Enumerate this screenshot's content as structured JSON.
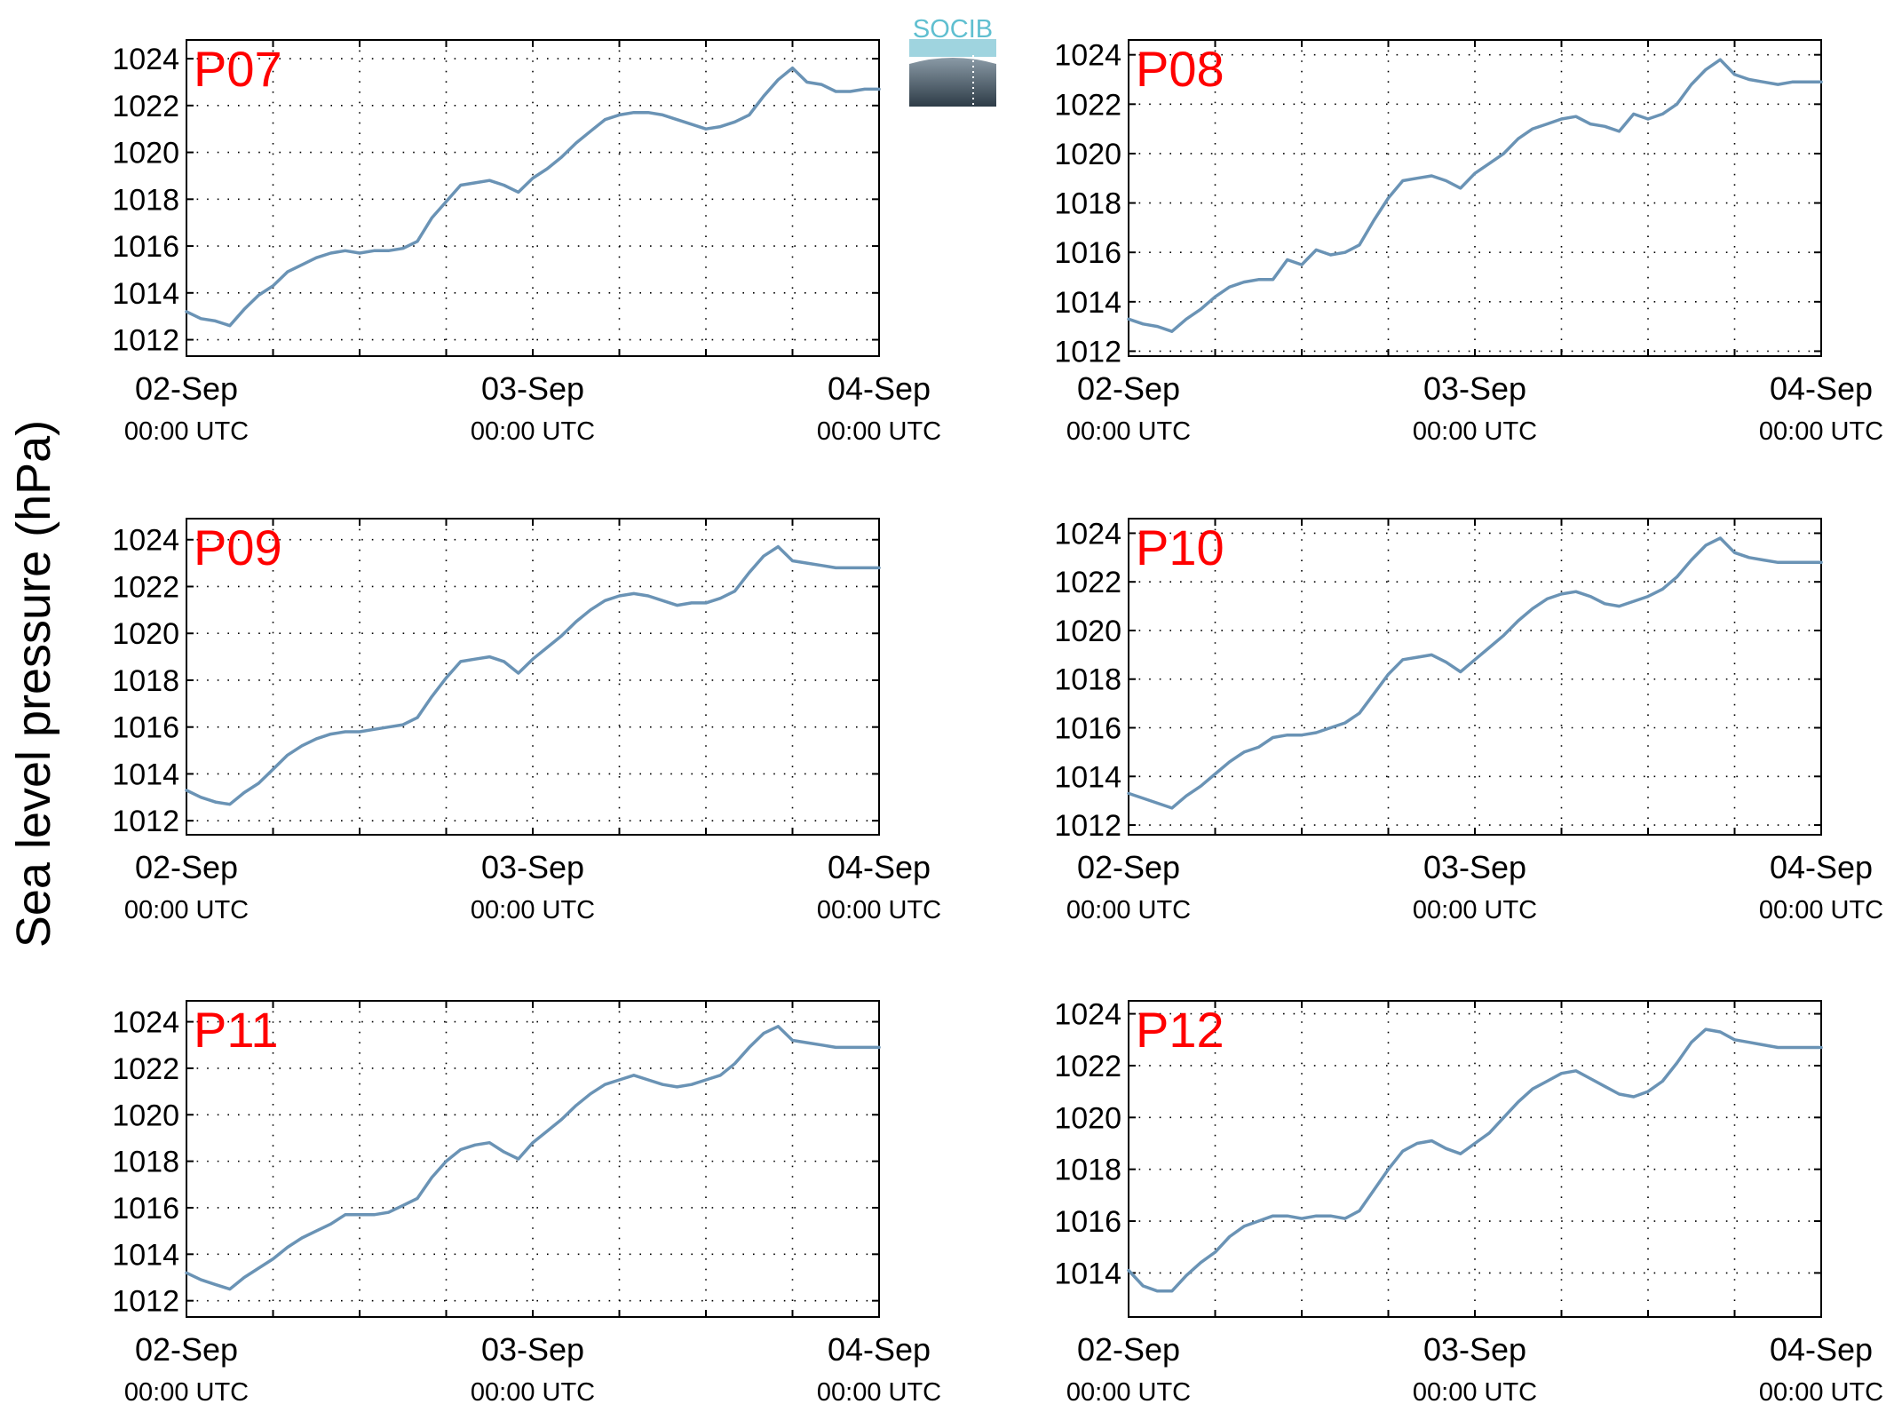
{
  "figure": {
    "ylabel": "Sea level pressure (hPa)",
    "logo_text": "SOCIB",
    "line_color": "#6a93b5",
    "label_color": "#ff0000"
  },
  "chart_data": [
    {
      "type": "line",
      "panel_label": "P07",
      "x_ticks": [
        {
          "x": 0,
          "date": "02-Sep",
          "time": "00:00 UTC"
        },
        {
          "x": 24,
          "date": "03-Sep",
          "time": "00:00 UTC"
        },
        {
          "x": 48,
          "date": "04-Sep",
          "time": "00:00 UTC"
        }
      ],
      "xlim": [
        0,
        48
      ],
      "ylim": [
        1011.3,
        1024.8
      ],
      "yticks": [
        1012,
        1014,
        1016,
        1018,
        1020,
        1022,
        1024
      ],
      "grid": true,
      "series": [
        {
          "x": [
            0,
            1,
            2,
            3,
            4,
            5,
            6,
            7,
            8,
            9,
            10,
            11,
            12,
            13,
            14,
            15,
            16,
            17,
            18,
            19,
            20,
            21,
            22,
            23,
            24,
            25,
            26,
            27,
            28,
            29,
            30,
            31,
            32,
            33,
            34,
            35,
            36,
            37,
            38,
            39,
            40,
            41,
            42,
            43,
            44,
            45,
            46,
            47,
            48
          ],
          "values": [
            1013.2,
            1012.9,
            1012.8,
            1012.6,
            1013.3,
            1013.9,
            1014.3,
            1014.9,
            1015.2,
            1015.5,
            1015.7,
            1015.8,
            1015.7,
            1015.8,
            1015.8,
            1015.9,
            1016.2,
            1017.2,
            1017.9,
            1018.6,
            1018.7,
            1018.8,
            1018.6,
            1018.3,
            1018.9,
            1019.3,
            1019.8,
            1020.4,
            1020.9,
            1021.4,
            1021.6,
            1021.7,
            1021.7,
            1021.6,
            1021.4,
            1021.2,
            1021.0,
            1021.1,
            1021.3,
            1021.6,
            1022.4,
            1023.1,
            1023.6,
            1023.0,
            1022.9,
            1022.6,
            1022.6,
            1022.7,
            1022.7
          ]
        }
      ]
    },
    {
      "type": "line",
      "panel_label": "P08",
      "x_ticks": [
        {
          "x": 0,
          "date": "02-Sep",
          "time": "00:00 UTC"
        },
        {
          "x": 24,
          "date": "03-Sep",
          "time": "00:00 UTC"
        },
        {
          "x": 48,
          "date": "04-Sep",
          "time": "00:00 UTC"
        }
      ],
      "xlim": [
        0,
        48
      ],
      "ylim": [
        1011.8,
        1024.6
      ],
      "yticks": [
        1012,
        1014,
        1016,
        1018,
        1020,
        1022,
        1024
      ],
      "grid": true,
      "series": [
        {
          "x": [
            0,
            1,
            2,
            3,
            4,
            5,
            6,
            7,
            8,
            9,
            10,
            11,
            12,
            13,
            14,
            15,
            16,
            17,
            18,
            19,
            20,
            21,
            22,
            23,
            24,
            25,
            26,
            27,
            28,
            29,
            30,
            31,
            32,
            33,
            34,
            35,
            36,
            37,
            38,
            39,
            40,
            41,
            42,
            43,
            44,
            45,
            46,
            47,
            48
          ],
          "values": [
            1013.3,
            1013.1,
            1013.0,
            1012.8,
            1013.3,
            1013.7,
            1014.2,
            1014.6,
            1014.8,
            1014.9,
            1014.9,
            1015.7,
            1015.5,
            1016.1,
            1015.9,
            1016.0,
            1016.3,
            1017.3,
            1018.2,
            1018.9,
            1019.0,
            1019.1,
            1018.9,
            1018.6,
            1019.2,
            1019.6,
            1020.0,
            1020.6,
            1021.0,
            1021.2,
            1021.4,
            1021.5,
            1021.2,
            1021.1,
            1020.9,
            1021.6,
            1021.4,
            1021.6,
            1022.0,
            1022.8,
            1023.4,
            1023.8,
            1023.2,
            1023.0,
            1022.9,
            1022.8,
            1022.9,
            1022.9,
            1022.9
          ]
        }
      ]
    },
    {
      "type": "line",
      "panel_label": "P09",
      "x_ticks": [
        {
          "x": 0,
          "date": "02-Sep",
          "time": "00:00 UTC"
        },
        {
          "x": 24,
          "date": "03-Sep",
          "time": "00:00 UTC"
        },
        {
          "x": 48,
          "date": "04-Sep",
          "time": "00:00 UTC"
        }
      ],
      "xlim": [
        0,
        48
      ],
      "ylim": [
        1011.4,
        1024.9
      ],
      "yticks": [
        1012,
        1014,
        1016,
        1018,
        1020,
        1022,
        1024
      ],
      "grid": true,
      "series": [
        {
          "x": [
            0,
            1,
            2,
            3,
            4,
            5,
            6,
            7,
            8,
            9,
            10,
            11,
            12,
            13,
            14,
            15,
            16,
            17,
            18,
            19,
            20,
            21,
            22,
            23,
            24,
            25,
            26,
            27,
            28,
            29,
            30,
            31,
            32,
            33,
            34,
            35,
            36,
            37,
            38,
            39,
            40,
            41,
            42,
            43,
            44,
            45,
            46,
            47,
            48
          ],
          "values": [
            1013.3,
            1013.0,
            1012.8,
            1012.7,
            1013.2,
            1013.6,
            1014.2,
            1014.8,
            1015.2,
            1015.5,
            1015.7,
            1015.8,
            1015.8,
            1015.9,
            1016.0,
            1016.1,
            1016.4,
            1017.3,
            1018.1,
            1018.8,
            1018.9,
            1019.0,
            1018.8,
            1018.3,
            1018.9,
            1019.4,
            1019.9,
            1020.5,
            1021.0,
            1021.4,
            1021.6,
            1021.7,
            1021.6,
            1021.4,
            1021.2,
            1021.3,
            1021.3,
            1021.5,
            1021.8,
            1022.6,
            1023.3,
            1023.7,
            1023.1,
            1023.0,
            1022.9,
            1022.8,
            1022.8,
            1022.8,
            1022.8
          ]
        }
      ]
    },
    {
      "type": "line",
      "panel_label": "P10",
      "x_ticks": [
        {
          "x": 0,
          "date": "02-Sep",
          "time": "00:00 UTC"
        },
        {
          "x": 24,
          "date": "03-Sep",
          "time": "00:00 UTC"
        },
        {
          "x": 48,
          "date": "04-Sep",
          "time": "00:00 UTC"
        }
      ],
      "xlim": [
        0,
        48
      ],
      "ylim": [
        1011.6,
        1024.6
      ],
      "yticks": [
        1012,
        1014,
        1016,
        1018,
        1020,
        1022,
        1024
      ],
      "grid": true,
      "series": [
        {
          "x": [
            0,
            1,
            2,
            3,
            4,
            5,
            6,
            7,
            8,
            9,
            10,
            11,
            12,
            13,
            14,
            15,
            16,
            17,
            18,
            19,
            20,
            21,
            22,
            23,
            24,
            25,
            26,
            27,
            28,
            29,
            30,
            31,
            32,
            33,
            34,
            35,
            36,
            37,
            38,
            39,
            40,
            41,
            42,
            43,
            44,
            45,
            46,
            47,
            48
          ],
          "values": [
            1013.3,
            1013.1,
            1012.9,
            1012.7,
            1013.2,
            1013.6,
            1014.1,
            1014.6,
            1015.0,
            1015.2,
            1015.6,
            1015.7,
            1015.7,
            1015.8,
            1016.0,
            1016.2,
            1016.6,
            1017.4,
            1018.2,
            1018.8,
            1018.9,
            1019.0,
            1018.7,
            1018.3,
            1018.8,
            1019.3,
            1019.8,
            1020.4,
            1020.9,
            1021.3,
            1021.5,
            1021.6,
            1021.4,
            1021.1,
            1021.0,
            1021.2,
            1021.4,
            1021.7,
            1022.2,
            1022.9,
            1023.5,
            1023.8,
            1023.2,
            1023.0,
            1022.9,
            1022.8,
            1022.8,
            1022.8,
            1022.8
          ]
        }
      ]
    },
    {
      "type": "line",
      "panel_label": "P11",
      "x_ticks": [
        {
          "x": 0,
          "date": "02-Sep",
          "time": "00:00 UTC"
        },
        {
          "x": 24,
          "date": "03-Sep",
          "time": "00:00 UTC"
        },
        {
          "x": 48,
          "date": "04-Sep",
          "time": "00:00 UTC"
        }
      ],
      "xlim": [
        0,
        48
      ],
      "ylim": [
        1011.3,
        1024.9
      ],
      "yticks": [
        1012,
        1014,
        1016,
        1018,
        1020,
        1022,
        1024
      ],
      "grid": true,
      "series": [
        {
          "x": [
            0,
            1,
            2,
            3,
            4,
            5,
            6,
            7,
            8,
            9,
            10,
            11,
            12,
            13,
            14,
            15,
            16,
            17,
            18,
            19,
            20,
            21,
            22,
            23,
            24,
            25,
            26,
            27,
            28,
            29,
            30,
            31,
            32,
            33,
            34,
            35,
            36,
            37,
            38,
            39,
            40,
            41,
            42,
            43,
            44,
            45,
            46,
            47,
            48
          ],
          "values": [
            1013.2,
            1012.9,
            1012.7,
            1012.5,
            1013.0,
            1013.4,
            1013.8,
            1014.3,
            1014.7,
            1015.0,
            1015.3,
            1015.7,
            1015.7,
            1015.7,
            1015.8,
            1016.1,
            1016.4,
            1017.3,
            1018.0,
            1018.5,
            1018.7,
            1018.8,
            1018.4,
            1018.1,
            1018.8,
            1019.3,
            1019.8,
            1020.4,
            1020.9,
            1021.3,
            1021.5,
            1021.7,
            1021.5,
            1021.3,
            1021.2,
            1021.3,
            1021.5,
            1021.7,
            1022.2,
            1022.9,
            1023.5,
            1023.8,
            1023.2,
            1023.1,
            1023.0,
            1022.9,
            1022.9,
            1022.9,
            1022.9
          ]
        }
      ]
    },
    {
      "type": "line",
      "panel_label": "P12",
      "x_ticks": [
        {
          "x": 0,
          "date": "02-Sep",
          "time": "00:00 UTC"
        },
        {
          "x": 24,
          "date": "03-Sep",
          "time": "00:00 UTC"
        },
        {
          "x": 48,
          "date": "04-Sep",
          "time": "00:00 UTC"
        }
      ],
      "xlim": [
        0,
        48
      ],
      "ylim": [
        1012.3,
        1024.5
      ],
      "yticks": [
        1014,
        1016,
        1018,
        1020,
        1022,
        1024
      ],
      "grid": true,
      "series": [
        {
          "x": [
            0,
            1,
            2,
            3,
            4,
            5,
            6,
            7,
            8,
            9,
            10,
            11,
            12,
            13,
            14,
            15,
            16,
            17,
            18,
            19,
            20,
            21,
            22,
            23,
            24,
            25,
            26,
            27,
            28,
            29,
            30,
            31,
            32,
            33,
            34,
            35,
            36,
            37,
            38,
            39,
            40,
            41,
            42,
            43,
            44,
            45,
            46,
            47,
            48
          ],
          "values": [
            1014.1,
            1013.5,
            1013.3,
            1013.3,
            1013.9,
            1014.4,
            1014.8,
            1015.4,
            1015.8,
            1016.0,
            1016.2,
            1016.2,
            1016.1,
            1016.2,
            1016.2,
            1016.1,
            1016.4,
            1017.2,
            1018.0,
            1018.7,
            1019.0,
            1019.1,
            1018.8,
            1018.6,
            1019.0,
            1019.4,
            1020.0,
            1020.6,
            1021.1,
            1021.4,
            1021.7,
            1021.8,
            1021.5,
            1021.2,
            1020.9,
            1020.8,
            1021.0,
            1021.4,
            1022.1,
            1022.9,
            1023.4,
            1023.3,
            1023.0,
            1022.9,
            1022.8,
            1022.7,
            1022.7,
            1022.7,
            1022.7
          ]
        }
      ]
    }
  ]
}
